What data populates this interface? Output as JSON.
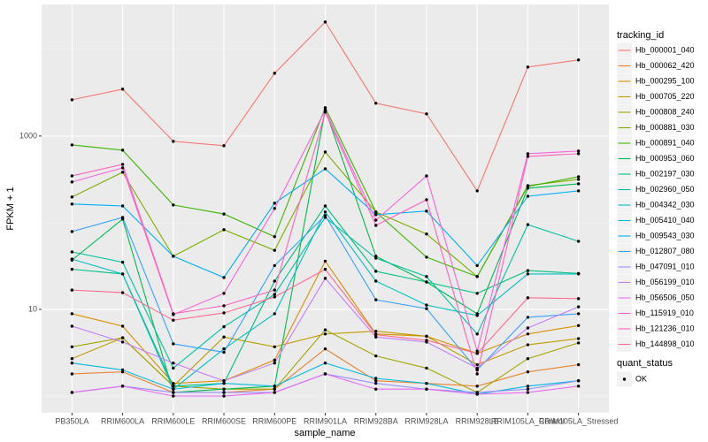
{
  "chart_data": {
    "type": "line",
    "x_label": "sample_name",
    "y_label": "FPKM + 1",
    "categories": [
      "PB350LA",
      "RRIM600LA",
      "RRIM600LE",
      "RRIM600SE",
      "RRIM600PE",
      "RRIM901LA",
      "RRIM928BA",
      "RRIM928LA",
      "RRIM928LE",
      "RRIM105LA_Control",
      "RRIM105LA_Stressed"
    ],
    "ylim": [
      0.64,
      33000
    ],
    "yticks": [
      10,
      1000
    ],
    "log_scale": true,
    "grid": true,
    "legend_title": "tracking_id",
    "legend_position": "right",
    "shape_legend": {
      "title": "quant_status",
      "labels": [
        "OK"
      ]
    },
    "series": [
      {
        "name": "Hb_000001_040",
        "color": "#F8766D",
        "values": [
          2620,
          3475,
          868,
          773,
          5300,
          20700,
          2390,
          1800,
          233,
          6250,
          7550
        ]
      },
      {
        "name": "Hb_000062_420",
        "color": "#EA8331",
        "values": [
          1.8,
          1.9,
          1.1,
          1.1,
          1.2,
          3.5,
          1.5,
          1.4,
          1.3,
          1.9,
          2.3
        ]
      },
      {
        "name": "Hb_000295_100",
        "color": "#D89000",
        "values": [
          8.9,
          6.4,
          1.4,
          1.5,
          2.6,
          36,
          5.2,
          4.9,
          3.1,
          5.2,
          6.5
        ]
      },
      {
        "name": "Hb_000705_220",
        "color": "#C09B00",
        "values": [
          2.7,
          4.7,
          1.3,
          4.8,
          3.7,
          5.2,
          5.6,
          4.9,
          2.3,
          3.9,
          4.6
        ]
      },
      {
        "name": "Hb_000808_240",
        "color": "#A3A500",
        "values": [
          3.7,
          4.7,
          1.3,
          1.2,
          1.2,
          5.8,
          2.9,
          2.1,
          1.1,
          2.7,
          4.1
        ]
      },
      {
        "name": "Hb_000881_030",
        "color": "#7CAE00",
        "values": [
          198,
          382,
          41,
          83,
          48,
          655,
          133,
          74,
          23.9,
          268,
          316
        ]
      },
      {
        "name": "Hb_000891_040",
        "color": "#39B600",
        "values": [
          790,
          687,
          160,
          126,
          69,
          2120,
          133,
          40,
          23.9,
          262,
          339
        ]
      },
      {
        "name": "Hb_000953_060",
        "color": "#00BB4E",
        "values": [
          37,
          110,
          1.1,
          1.2,
          1.3,
          2020,
          41,
          20.7,
          8.9,
          250,
          281
        ]
      },
      {
        "name": "Hb_002197_030",
        "color": "#00BF7D",
        "values": [
          29,
          25.6,
          1.3,
          1.4,
          21.2,
          156,
          27.5,
          20.7,
          15.3,
          28,
          26
        ]
      },
      {
        "name": "Hb_002960_050",
        "color": "#00C1A3",
        "values": [
          46,
          35,
          2.1,
          6.3,
          14.9,
          115,
          39,
          23.9,
          5.2,
          95,
          61
        ]
      },
      {
        "name": "Hb_004342_030",
        "color": "#00BFC4",
        "values": [
          38,
          25.6,
          1.2,
          3.5,
          8.9,
          133,
          21.2,
          11.2,
          8.5,
          25.6,
          25.6
        ]
      },
      {
        "name": "Hb_005410_040",
        "color": "#00BAE0",
        "values": [
          2.4,
          2.0,
          1.2,
          1.4,
          1.3,
          2.4,
          1.6,
          1.4,
          1.05,
          1.3,
          1.5
        ]
      },
      {
        "name": "Hb_009543_030",
        "color": "#00B0F6",
        "values": [
          164,
          156,
          41,
          23.3,
          168,
          419,
          124,
          136,
          32,
          202,
          233
        ]
      },
      {
        "name": "Hb_012807_080",
        "color": "#35A2FF",
        "values": [
          79,
          115,
          4.0,
          3.2,
          32,
          121,
          12.9,
          10.2,
          2.0,
          8.1,
          8.9
        ]
      },
      {
        "name": "Hb_047091_010",
        "color": "#9590FF",
        "values": [
          1.1,
          1.3,
          1.1,
          1.1,
          1.1,
          1.8,
          1.4,
          1.2,
          1.1,
          1.2,
          1.5
        ]
      },
      {
        "name": "Hb_056199_010",
        "color": "#C77CFF",
        "values": [
          6.4,
          4.2,
          2.4,
          1.5,
          2.4,
          22.8,
          4.8,
          4.2,
          2.1,
          6.1,
          10.7
        ]
      },
      {
        "name": "Hb_056506_050",
        "color": "#E76BF3",
        "values": [
          1.1,
          1.3,
          1.0,
          1.0,
          1.1,
          1.8,
          1.2,
          1.2,
          1.05,
          1.1,
          1.3
        ]
      },
      {
        "name": "Hb_115919_010",
        "color": "#FA62DB",
        "values": [
          295,
          429,
          8.7,
          15.3,
          146,
          1980,
          107,
          347,
          3.3,
          625,
          671
        ]
      },
      {
        "name": "Hb_121236_010",
        "color": "#FF62BC",
        "values": [
          347,
          471,
          8.9,
          11.0,
          16.7,
          1890,
          93,
          184,
          1.8,
          582,
          625
        ]
      },
      {
        "name": "Hb_144898_010",
        "color": "#FF6C91",
        "values": [
          16.7,
          15.6,
          7.5,
          9.1,
          13.9,
          29,
          5.1,
          4.4,
          3.1,
          13.6,
          13.3
        ]
      }
    ]
  }
}
